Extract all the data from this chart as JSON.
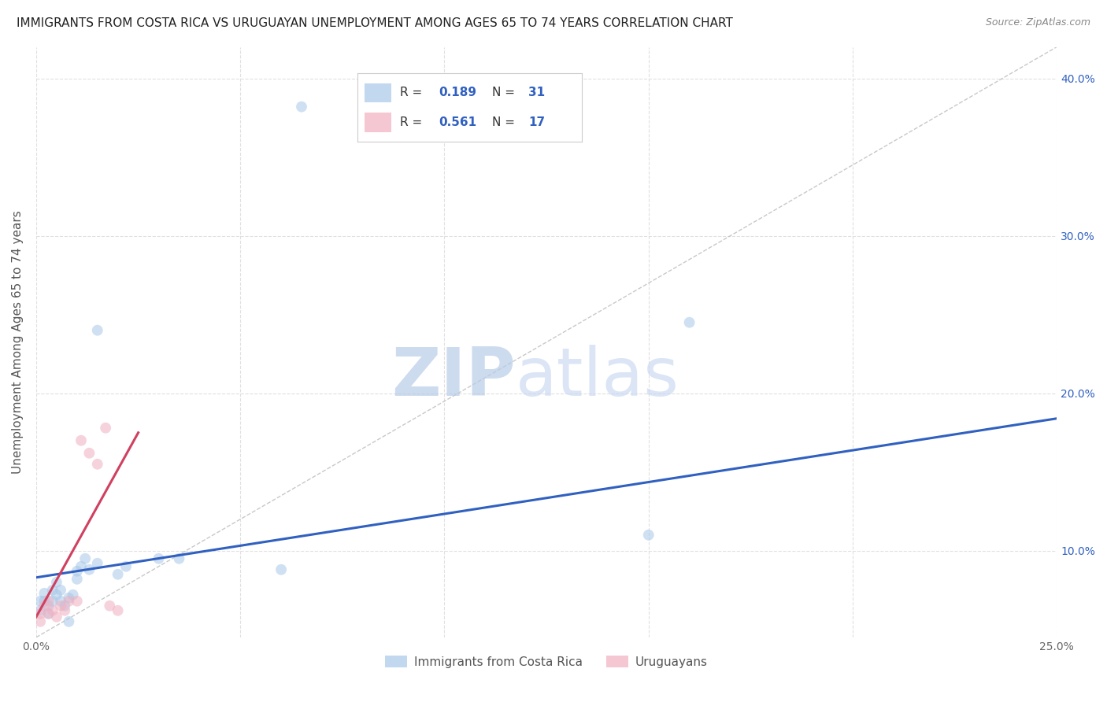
{
  "title": "IMMIGRANTS FROM COSTA RICA VS URUGUAYAN UNEMPLOYMENT AMONG AGES 65 TO 74 YEARS CORRELATION CHART",
  "source": "Source: ZipAtlas.com",
  "ylabel": "Unemployment Among Ages 65 to 74 years",
  "xlim": [
    0.0,
    0.25
  ],
  "ylim": [
    0.045,
    0.42
  ],
  "ytick_positions": [
    0.1,
    0.2,
    0.3,
    0.4
  ],
  "ytick_labels": [
    "10.0%",
    "20.0%",
    "30.0%",
    "40.0%"
  ],
  "xtick_positions": [
    0.0,
    0.05,
    0.1,
    0.15,
    0.2,
    0.25
  ],
  "xtick_labels": [
    "0.0%",
    "",
    "",
    "",
    "",
    "25.0%"
  ],
  "legend_r1": "0.189",
  "legend_n1": "31",
  "legend_r2": "0.561",
  "legend_n2": "17",
  "blue_color": "#A8C8E8",
  "pink_color": "#F0B0C0",
  "blue_line_color": "#3060C0",
  "pink_line_color": "#D04060",
  "dot_size": 100,
  "blue_scatter_x": [
    0.001,
    0.001,
    0.002,
    0.002,
    0.003,
    0.003,
    0.004,
    0.004,
    0.005,
    0.005,
    0.006,
    0.006,
    0.007,
    0.008,
    0.009,
    0.01,
    0.01,
    0.011,
    0.012,
    0.013,
    0.015,
    0.02,
    0.022,
    0.03,
    0.035,
    0.06,
    0.065,
    0.15,
    0.16,
    0.015,
    0.008
  ],
  "blue_scatter_y": [
    0.068,
    0.062,
    0.073,
    0.068,
    0.065,
    0.06,
    0.068,
    0.075,
    0.072,
    0.08,
    0.075,
    0.068,
    0.065,
    0.07,
    0.072,
    0.087,
    0.082,
    0.09,
    0.095,
    0.088,
    0.092,
    0.085,
    0.09,
    0.095,
    0.095,
    0.088,
    0.382,
    0.11,
    0.245,
    0.24,
    0.055
  ],
  "pink_scatter_x": [
    0.001,
    0.001,
    0.002,
    0.003,
    0.003,
    0.004,
    0.005,
    0.006,
    0.007,
    0.008,
    0.01,
    0.011,
    0.013,
    0.015,
    0.017,
    0.018,
    0.02
  ],
  "pink_scatter_y": [
    0.06,
    0.055,
    0.065,
    0.06,
    0.068,
    0.062,
    0.058,
    0.065,
    0.062,
    0.068,
    0.068,
    0.17,
    0.162,
    0.155,
    0.178,
    0.065,
    0.062
  ],
  "blue_trend_x": [
    0.0,
    0.25
  ],
  "blue_trend_y": [
    0.083,
    0.184
  ],
  "pink_trend_x": [
    0.0,
    0.025
  ],
  "pink_trend_y": [
    0.058,
    0.175
  ],
  "ref_line_x": [
    0.0,
    0.25
  ],
  "ref_line_y": [
    0.045,
    0.42
  ],
  "watermark_zip": "ZIP",
  "watermark_atlas": "atlas",
  "watermark_color_zip": "#C8D8F0",
  "watermark_color_atlas": "#C8D8F0",
  "background_color": "#FFFFFF",
  "grid_color": "#DDDDDD",
  "title_fontsize": 11,
  "axis_label_fontsize": 11,
  "tick_fontsize": 10
}
